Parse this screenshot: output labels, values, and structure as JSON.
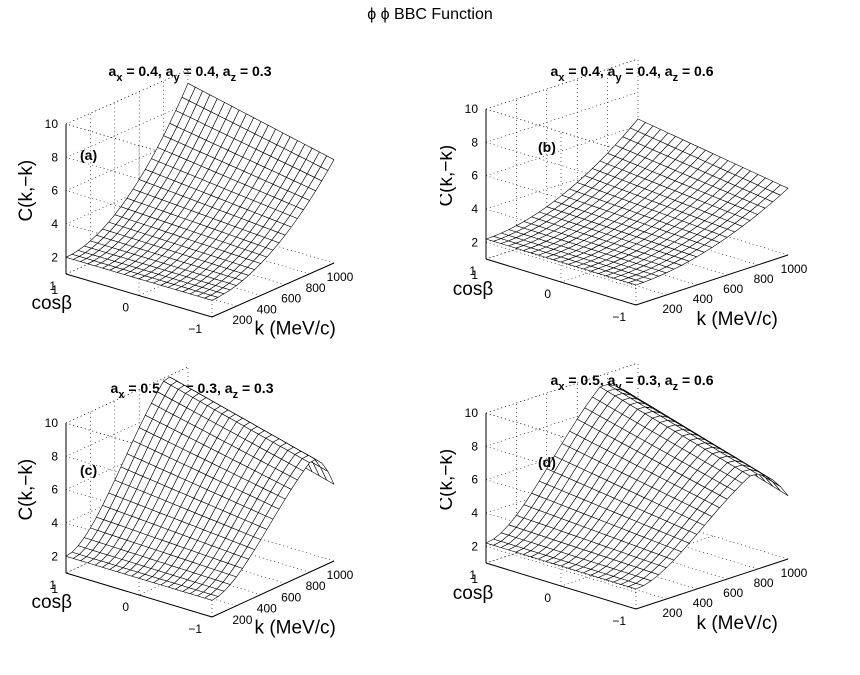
{
  "figure": {
    "title": "ϕ ϕ BBC Function"
  },
  "chart_data": [
    {
      "type": "surface",
      "panel_label": "(a)",
      "title_parts": [
        [
          "a",
          "x",
          " = 0.4, "
        ],
        [
          "a",
          "y",
          " = 0.4, "
        ],
        [
          "a",
          "z",
          " = 0.3"
        ]
      ],
      "xlabel": "k (MeV/c)",
      "ylabel": "cosβ",
      "zlabel": "C(k,−k)",
      "x_ticks": [
        "200",
        "400",
        "600",
        "800",
        "1000"
      ],
      "x_tick_values": [
        200,
        400,
        600,
        800,
        1000
      ],
      "y_ticks": [
        "−1",
        "0",
        "1"
      ],
      "y_tick_values": [
        -1,
        0,
        1
      ],
      "z_ticks": [
        "2",
        "4",
        "6",
        "8",
        "10"
      ],
      "z_tick_values": [
        2,
        4,
        6,
        8,
        10
      ],
      "z_extra_tick": "1",
      "xlim": [
        0,
        1000
      ],
      "ylim": [
        -1,
        1
      ],
      "zlim": [
        1,
        10
      ],
      "surface_corners": {
        "k0_cos_minus1": 2.0,
        "k0_cos_plus1": 2.0,
        "k1000_cos_minus1": 7.2,
        "k1000_cos_plus1": 9.2
      },
      "shape": "monotonic"
    },
    {
      "type": "surface",
      "panel_label": "(b)",
      "title_parts": [
        [
          "a",
          "x",
          " = 0.4, "
        ],
        [
          "a",
          "y",
          " = 0.4, "
        ],
        [
          "a",
          "z",
          " = 0.6"
        ]
      ],
      "xlabel": "k (MeV/c)",
      "ylabel": "cosβ",
      "zlabel": "C(k,−k)",
      "x_ticks": [
        "200",
        "400",
        "600",
        "800",
        "1000"
      ],
      "x_tick_values": [
        200,
        400,
        600,
        800,
        1000
      ],
      "y_ticks": [
        "−1",
        "0",
        "1"
      ],
      "y_tick_values": [
        -1,
        0,
        1
      ],
      "z_ticks": [
        "2",
        "4",
        "6",
        "8",
        "10"
      ],
      "z_tick_values": [
        2,
        4,
        6,
        8,
        10
      ],
      "z_extra_tick": "1",
      "xlim": [
        0,
        1000
      ],
      "ylim": [
        -1,
        1
      ],
      "zlim": [
        1,
        10
      ],
      "surface_corners": {
        "k0_cos_minus1": 2.2,
        "k0_cos_plus1": 2.2,
        "k1000_cos_minus1": 5.0,
        "k1000_cos_plus1": 6.4
      },
      "shape": "monotonic"
    },
    {
      "type": "surface",
      "panel_label": "(c)",
      "title_parts": [
        [
          "a",
          "x",
          " = 0.5, "
        ],
        [
          "a",
          "y",
          " = 0.3, "
        ],
        [
          "a",
          "z",
          " = 0.3"
        ]
      ],
      "xlabel": "k (MeV/c)",
      "ylabel": "cosβ",
      "zlabel": "C(k,−k)",
      "x_ticks": [
        "200",
        "400",
        "600",
        "800",
        "1000"
      ],
      "x_tick_values": [
        200,
        400,
        600,
        800,
        1000
      ],
      "y_ticks": [
        "−1",
        "0",
        "1"
      ],
      "y_tick_values": [
        -1,
        0,
        1
      ],
      "z_ticks": [
        "2",
        "4",
        "6",
        "8",
        "10"
      ],
      "z_tick_values": [
        2,
        4,
        6,
        8,
        10
      ],
      "z_extra_tick": "1",
      "xlim": [
        0,
        1000
      ],
      "ylim": [
        -1,
        1
      ],
      "zlim": [
        1,
        10
      ],
      "surface_corners": {
        "k0_cos_minus1": 2.0,
        "k0_cos_plus1": 2.0,
        "kpeak": 820,
        "peak_cos_plus1": 10.0,
        "k1000_cos_minus1": 5.6,
        "k1000_cos_plus1": 8.0
      },
      "shape": "peaked"
    },
    {
      "type": "surface",
      "panel_label": "(d)",
      "title_parts": [
        [
          "a",
          "x",
          " = 0.5, "
        ],
        [
          "a",
          "y",
          " = 0.3, "
        ],
        [
          "a",
          "z",
          " = 0.6"
        ]
      ],
      "xlabel": "k (MeV/c)",
      "ylabel": "cosβ",
      "zlabel": "C(k,−k)",
      "x_ticks": [
        "200",
        "400",
        "600",
        "800",
        "1000"
      ],
      "x_tick_values": [
        200,
        400,
        600,
        800,
        1000
      ],
      "y_ticks": [
        "−1",
        "0",
        "1"
      ],
      "y_tick_values": [
        -1,
        0,
        1
      ],
      "z_ticks": [
        "2",
        "4",
        "6",
        "8",
        "10"
      ],
      "z_tick_values": [
        2,
        4,
        6,
        8,
        10
      ],
      "z_extra_tick": "1",
      "xlim": [
        0,
        1000
      ],
      "ylim": [
        -1,
        1
      ],
      "zlim": [
        1,
        10
      ],
      "surface_corners": {
        "k0_cos_minus1": 2.2,
        "k0_cos_plus1": 2.2,
        "kpeak": 760,
        "peak_cos_plus1": 9.4,
        "k1000_cos_minus1": 4.8,
        "k1000_cos_plus1": 7.6
      },
      "shape": "peaked"
    }
  ]
}
